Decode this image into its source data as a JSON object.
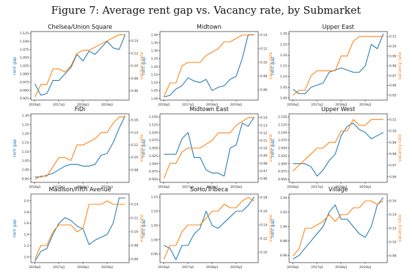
{
  "figure_title": "Figure 7: Average rent gap vs. Vacancy rate, by Submarket",
  "colors": {
    "rent_gap": "#1f77b4",
    "vacancy_rate": "#ff7f0e"
  },
  "chart_data": [
    {
      "type": "line",
      "title": "Chelsea/Union Square",
      "x": [
        "2016q1",
        "2016q2",
        "2016q3",
        "2016q4",
        "2017q1",
        "2017q2",
        "2017q3",
        "2017q4",
        "2018q1",
        "2018q2",
        "2018q3",
        "2018q4",
        "2019q1",
        "2019q2",
        "2019q3",
        "2019q4"
      ],
      "xticks": [
        "2016q1",
        "2017q1",
        "2018q1",
        "2019q1"
      ],
      "ylabel_left": "rent gap",
      "ylabel_right": "vacancy rate",
      "ylim_left": [
        0.92,
        1.13
      ],
      "yticks_left": [
        "0.925",
        "0.950",
        "0.975",
        "1.000",
        "1.025",
        "1.050",
        "1.075",
        "1.100",
        "1.125"
      ],
      "ylim_right": [
        0.045,
        0.155
      ],
      "yticks_right": [
        "0.06",
        "0.08",
        "0.10",
        "0.12",
        "0.14"
      ],
      "series": [
        {
          "name": "rent gap",
          "axis": "left",
          "values": [
            0.97,
            0.935,
            0.94,
            0.98,
            0.98,
            1.0,
            1.02,
            1.06,
            1.04,
            1.07,
            1.06,
            1.08,
            1.1,
            1.08,
            1.075,
            1.12
          ]
        },
        {
          "name": "vacancy rate",
          "axis": "right",
          "values": [
            0.05,
            0.07,
            0.07,
            0.095,
            0.095,
            0.09,
            0.1,
            0.12,
            0.125,
            0.125,
            0.13,
            0.135,
            0.14,
            0.145,
            0.15,
            0.15
          ]
        }
      ]
    },
    {
      "type": "line",
      "title": "Midtown",
      "x": [
        "2016q1",
        "2016q2",
        "2016q3",
        "2016q4",
        "2017q1",
        "2017q2",
        "2017q3",
        "2017q4",
        "2018q1",
        "2018q2",
        "2018q3",
        "2018q4",
        "2019q1",
        "2019q2",
        "2019q3",
        "2019q4"
      ],
      "xticks": [
        "2016q1",
        "2017q1",
        "2018q1",
        "2019q1"
      ],
      "ylabel_left": "rent gap",
      "ylabel_right": "vacancy rate",
      "ylim_left": [
        0.99,
        1.42
      ],
      "yticks_left": [
        "1.00",
        "1.05",
        "1.10",
        "1.15",
        "1.20",
        "1.25",
        "1.30",
        "1.35",
        "1.40"
      ],
      "ylim_right": [
        0.045,
        0.145
      ],
      "yticks_right": [
        "0.06",
        "0.08",
        "0.10",
        "0.12",
        "0.14"
      ],
      "series": [
        {
          "name": "rent gap",
          "axis": "left",
          "values": [
            1.01,
            1.02,
            1.06,
            1.08,
            1.13,
            1.11,
            1.1,
            1.12,
            1.05,
            1.07,
            1.08,
            1.12,
            1.14,
            1.25,
            1.4,
            1.4
          ]
        },
        {
          "name": "vacancy rate",
          "axis": "right",
          "values": [
            0.05,
            0.07,
            0.07,
            0.095,
            0.1,
            0.1,
            0.1,
            0.11,
            0.115,
            0.12,
            0.13,
            0.13,
            0.135,
            0.14,
            0.14,
            0.14
          ]
        }
      ]
    },
    {
      "type": "line",
      "title": "Upper East",
      "x": [
        "2016q1",
        "2016q2",
        "2016q3",
        "2016q4",
        "2017q1",
        "2017q2",
        "2017q3",
        "2017q4",
        "2018q1",
        "2018q2",
        "2018q3",
        "2018q4",
        "2019q1",
        "2019q2",
        "2019q3",
        "2019q4"
      ],
      "xticks": [
        "2016q1",
        "2017q1",
        "2018q1",
        "2019q1"
      ],
      "ylabel_left": "rent gap",
      "ylabel_right": "vacancy rate",
      "ylim_left": [
        0.99,
        1.31
      ],
      "yticks_left": [
        "1.00",
        "1.05",
        "1.10",
        "1.15",
        "1.20",
        "1.25",
        "1.30"
      ],
      "ylim_right": [
        0.045,
        0.115
      ],
      "yticks_right": [
        "0.05",
        "0.06",
        "0.07",
        "0.08",
        "0.09",
        "0.10",
        "0.11"
      ],
      "series": [
        {
          "name": "rent gap",
          "axis": "left",
          "values": [
            1.04,
            1.02,
            1.02,
            1.05,
            1.06,
            1.07,
            1.12,
            1.13,
            1.14,
            1.13,
            1.12,
            1.12,
            1.15,
            1.25,
            1.23,
            1.3
          ]
        },
        {
          "name": "vacancy rate",
          "axis": "right",
          "values": [
            0.05,
            0.055,
            0.055,
            0.07,
            0.075,
            0.075,
            0.075,
            0.075,
            0.09,
            0.09,
            0.105,
            0.11,
            0.11,
            0.11,
            0.11,
            0.11
          ]
        }
      ]
    },
    {
      "type": "line",
      "title": "FiDi",
      "x": [
        "2016q1",
        "2016q2",
        "2016q3",
        "2016q4",
        "2017q1",
        "2017q2",
        "2017q3",
        "2017q4",
        "2018q1",
        "2018q2",
        "2018q3",
        "2018q4",
        "2019q1",
        "2019q2",
        "2019q3",
        "2019q4"
      ],
      "xticks": [
        "2016q1",
        "2017q1",
        "2018q1",
        "2019q1"
      ],
      "ylabel_left": "rent gap",
      "ylabel_right": "vacancy rate",
      "ylim_left": [
        0.93,
        1.31
      ],
      "yticks_left": [
        "0.95",
        "1.00",
        "1.05",
        "1.10",
        "1.15",
        "1.20",
        "1.25",
        "1.30"
      ],
      "ylim_right": [
        0.06,
        0.17
      ],
      "yticks_right": [
        "0.08",
        "0.10",
        "0.12",
        "0.14",
        "0.16"
      ],
      "series": [
        {
          "name": "rent gap",
          "axis": "left",
          "values": [
            0.96,
            0.96,
            0.97,
            0.98,
            1.0,
            1.02,
            1.03,
            1.03,
            1.02,
            1.02,
            1.03,
            1.08,
            1.09,
            1.15,
            1.23,
            1.3
          ]
        },
        {
          "name": "vacancy rate",
          "axis": "right",
          "values": [
            0.065,
            0.07,
            0.07,
            0.085,
            0.1,
            0.1,
            0.095,
            0.12,
            0.12,
            0.125,
            0.13,
            0.14,
            0.14,
            0.155,
            0.165,
            0.165
          ]
        }
      ]
    },
    {
      "type": "line",
      "title": "Midtown East",
      "x": [
        "2016q1",
        "2016q2",
        "2016q3",
        "2016q4",
        "2017q1",
        "2017q2",
        "2017q3",
        "2017q4",
        "2018q1",
        "2018q2",
        "2018q3",
        "2018q4",
        "2019q1",
        "2019q2",
        "2019q3",
        "2019q4"
      ],
      "xticks": [
        "2016q1",
        "2017q1",
        "2018q1",
        "2019q1"
      ],
      "ylabel_left": "rent gap",
      "ylabel_right": "vacancy rate",
      "ylim_left": [
        0.94,
        1.16
      ],
      "yticks_left": [
        "0.950",
        "0.975",
        "1.000",
        "1.025",
        "1.050",
        "1.075",
        "1.100",
        "1.125",
        "1.150"
      ],
      "ylim_right": [
        0.055,
        0.145
      ],
      "yticks_right": [
        "0.06",
        "0.07",
        "0.08",
        "0.09",
        "0.10",
        "0.11",
        "0.12",
        "0.13",
        "0.14"
      ],
      "series": [
        {
          "name": "rent gap",
          "axis": "left",
          "values": [
            1.03,
            1.03,
            1.03,
            1.08,
            1.1,
            1.02,
            1.02,
            0.98,
            0.97,
            0.97,
            0.96,
            1.05,
            1.06,
            1.13,
            1.12,
            1.15
          ]
        },
        {
          "name": "vacancy rate",
          "axis": "right",
          "values": [
            0.06,
            0.08,
            0.08,
            0.095,
            0.1,
            0.1,
            0.1,
            0.105,
            0.11,
            0.12,
            0.12,
            0.12,
            0.13,
            0.135,
            0.14,
            0.14
          ]
        }
      ]
    },
    {
      "type": "line",
      "title": "Upper West",
      "x": [
        "2016q1",
        "2016q2",
        "2016q3",
        "2016q4",
        "2017q1",
        "2017q2",
        "2017q3",
        "2017q4",
        "2018q1",
        "2018q2",
        "2018q3",
        "2018q4",
        "2019q1",
        "2019q2",
        "2019q3",
        "2019q4"
      ],
      "xticks": [
        "2016q1",
        "2017q1",
        "2018q1",
        "2019q1"
      ],
      "ylabel_left": "rent gap",
      "ylabel_right": "vacancy rate",
      "ylim_left": [
        0.94,
        1.16
      ],
      "yticks_left": [
        "0.950",
        "0.975",
        "1.000",
        "1.025",
        "1.050",
        "1.075",
        "1.100",
        "1.125",
        "1.150"
      ],
      "ylim_right": [
        0.055,
        0.115
      ],
      "yticks_right": [
        "0.06",
        "0.07",
        "0.08",
        "0.09",
        "0.10",
        "0.11"
      ],
      "series": [
        {
          "name": "rent gap",
          "axis": "left",
          "values": [
            1.0,
            1.0,
            1.0,
            0.99,
            0.96,
            0.98,
            1.01,
            1.03,
            1.09,
            1.12,
            1.13,
            1.11,
            1.1,
            1.08,
            1.09,
            1.1
          ]
        },
        {
          "name": "vacancy rate",
          "axis": "right",
          "values": [
            0.065,
            0.07,
            0.075,
            0.08,
            0.085,
            0.085,
            0.09,
            0.09,
            0.1,
            0.1,
            0.11,
            0.105,
            0.105,
            0.11,
            0.11,
            0.11
          ]
        }
      ]
    },
    {
      "type": "line",
      "title": "Madison/Fifth Avenue",
      "x": [
        "2016q1",
        "2016q2",
        "2016q3",
        "2016q4",
        "2017q1",
        "2017q2",
        "2017q3",
        "2017q4",
        "2018q1",
        "2018q2",
        "2018q3",
        "2018q4",
        "2019q1",
        "2019q2",
        "2019q3",
        "2019q4"
      ],
      "xticks": [
        "2016q1",
        "2017q1",
        "2018q1",
        "2019q1"
      ],
      "ylabel_left": "rent gap",
      "ylabel_right": "vacancy rate",
      "ylim_left": [
        0.9,
        2.12
      ],
      "yticks_left": [
        "1.0",
        "1.2",
        "1.4",
        "1.6",
        "1.8",
        "2.0"
      ],
      "ylim_right": [
        0.055,
        0.155
      ],
      "yticks_right": [
        "0.06",
        "0.08",
        "0.10",
        "0.12",
        "0.14"
      ],
      "series": [
        {
          "name": "rent gap",
          "axis": "left",
          "values": [
            0.92,
            1.1,
            1.15,
            1.4,
            1.6,
            1.7,
            1.65,
            1.55,
            1.5,
            1.22,
            1.3,
            1.35,
            1.4,
            1.6,
            2.05,
            2.05
          ]
        },
        {
          "name": "vacancy rate",
          "axis": "right",
          "values": [
            0.06,
            0.08,
            0.08,
            0.1,
            0.11,
            0.11,
            0.11,
            0.1,
            0.105,
            0.14,
            0.14,
            0.14,
            0.145,
            0.14,
            0.14,
            0.14
          ]
        }
      ]
    },
    {
      "type": "line",
      "title": "SoHo/Tribeca",
      "x": [
        "2016q1",
        "2016q2",
        "2016q3",
        "2016q4",
        "2017q1",
        "2017q2",
        "2017q3",
        "2017q4",
        "2018q1",
        "2018q2",
        "2018q3",
        "2018q4",
        "2019q1",
        "2019q2",
        "2019q3",
        "2019q4"
      ],
      "xticks": [
        "2016q1",
        "2017q1",
        "2018q1",
        "2019q1"
      ],
      "ylabel_left": "rent gap",
      "ylabel_right": "vacancy rate",
      "ylim_left": [
        0.92,
        1.16
      ],
      "yticks_left": [
        "0.95",
        "1.00",
        "1.05",
        "1.10",
        "1.15"
      ],
      "ylim_right": [
        0.085,
        0.185
      ],
      "yticks_right": [
        "0.10",
        "0.12",
        "0.14",
        "0.16",
        "0.18"
      ],
      "series": [
        {
          "name": "rent gap",
          "axis": "left",
          "values": [
            0.98,
            0.97,
            0.93,
            0.98,
            0.98,
            1.02,
            1.04,
            1.1,
            1.05,
            1.04,
            1.06,
            1.08,
            1.1,
            1.1,
            1.12,
            1.15
          ]
        },
        {
          "name": "vacancy rate",
          "axis": "right",
          "values": [
            0.09,
            0.11,
            0.11,
            0.13,
            0.14,
            0.14,
            0.14,
            0.15,
            0.16,
            0.16,
            0.17,
            0.165,
            0.165,
            0.175,
            0.18,
            0.175
          ]
        }
      ]
    },
    {
      "type": "line",
      "title": "Village",
      "x": [
        "2016q1",
        "2016q2",
        "2016q3",
        "2016q4",
        "2017q1",
        "2017q2",
        "2017q3",
        "2017q4",
        "2018q1",
        "2018q2",
        "2018q3",
        "2018q4",
        "2019q1",
        "2019q2",
        "2019q3",
        "2019q4"
      ],
      "xticks": [
        "2016q1",
        "2017q1",
        "2018q1",
        "2019q1"
      ],
      "ylabel_left": "rent gap",
      "ylabel_right": "vacancy rate",
      "ylim_left": [
        0.95,
        1.045
      ],
      "yticks_left": [
        "0.96",
        "0.98",
        "1.00",
        "1.02",
        "1.04"
      ],
      "ylim_right": [
        0.07,
        0.17
      ],
      "yticks_right": [
        "0.08",
        "0.10",
        "0.12",
        "0.14",
        "0.16"
      ],
      "series": [
        {
          "name": "rent gap",
          "axis": "left",
          "values": [
            0.955,
            0.96,
            0.97,
            0.98,
            0.99,
            1.0,
            1.02,
            1.03,
            1.01,
            1.01,
            1.0,
            0.99,
            0.985,
            1.0,
            1.03,
            1.04
          ]
        },
        {
          "name": "vacancy rate",
          "axis": "right",
          "values": [
            0.08,
            0.09,
            0.12,
            0.12,
            0.125,
            0.13,
            0.14,
            0.13,
            0.14,
            0.14,
            0.15,
            0.15,
            0.16,
            0.16,
            0.155,
            0.16
          ]
        }
      ]
    }
  ]
}
